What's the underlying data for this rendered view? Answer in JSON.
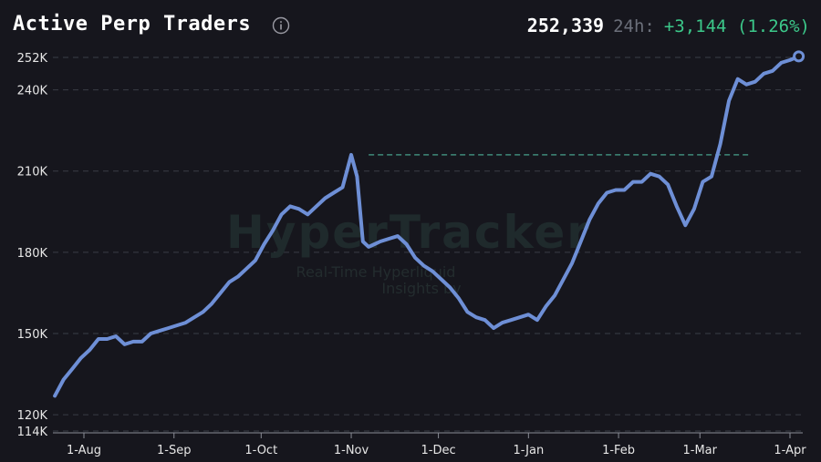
{
  "header": {
    "title": "Active Perp Traders",
    "current_value": "252,339",
    "period_label": "24h:",
    "change_text": "+3,144 (1.26%)"
  },
  "watermark": {
    "brand": "HyperTracker",
    "tagline_1": "Real-Time Hyperliquid",
    "tagline_2": "Insights by"
  },
  "colors": {
    "background": "#16161d",
    "line": "#6e8fd6",
    "positive": "#3cc88a",
    "grid": "#3a3d46",
    "reference_line": "#3f8a7a"
  },
  "chart_data": {
    "type": "line",
    "title": "Active Perp Traders",
    "xlabel": "",
    "ylabel": "",
    "ylim": [
      114000,
      254000
    ],
    "y_ticks": [
      {
        "label": "252K",
        "value": 252000
      },
      {
        "label": "240K",
        "value": 240000
      },
      {
        "label": "210K",
        "value": 210000
      },
      {
        "label": "180K",
        "value": 180000
      },
      {
        "label": "150K",
        "value": 150000
      },
      {
        "label": "120K",
        "value": 120000
      },
      {
        "label": "114K",
        "value": 114000
      }
    ],
    "x_ticks": [
      {
        "label": "1-Aug",
        "date": "2024-08-01"
      },
      {
        "label": "1-Sep",
        "date": "2024-09-01"
      },
      {
        "label": "1-Oct",
        "date": "2024-10-01"
      },
      {
        "label": "1-Nov",
        "date": "2024-11-01"
      },
      {
        "label": "1-Dec",
        "date": "2024-12-01"
      },
      {
        "label": "1-Jan",
        "date": "2025-01-01"
      },
      {
        "label": "1-Feb",
        "date": "2025-02-01"
      },
      {
        "label": "1-Mar",
        "date": "2025-03-01"
      },
      {
        "label": "1-Apr",
        "date": "2025-04-01"
      }
    ],
    "reference_line": {
      "value": 216000,
      "style": "dashed",
      "from": "2024-11-07",
      "to": "2025-03-18"
    },
    "grid": "horizontal-dashed",
    "legend": "none",
    "series": [
      {
        "x": [
          "2024-07-22",
          "2024-07-25",
          "2024-07-28",
          "2024-07-31",
          "2024-08-03",
          "2024-08-06",
          "2024-08-09",
          "2024-08-12",
          "2024-08-15",
          "2024-08-18",
          "2024-08-21",
          "2024-08-24",
          "2024-08-27",
          "2024-08-30",
          "2024-09-02",
          "2024-09-05",
          "2024-09-08",
          "2024-09-11",
          "2024-09-14",
          "2024-09-17",
          "2024-09-20",
          "2024-09-23",
          "2024-09-26",
          "2024-09-29",
          "2024-10-02",
          "2024-10-05",
          "2024-10-08",
          "2024-10-11",
          "2024-10-14",
          "2024-10-17",
          "2024-10-20",
          "2024-10-23",
          "2024-10-26",
          "2024-10-29",
          "2024-11-01",
          "2024-11-03",
          "2024-11-05",
          "2024-11-06",
          "2024-11-07",
          "2024-11-09",
          "2024-11-11",
          "2024-11-14",
          "2024-11-17",
          "2024-11-20",
          "2024-11-23",
          "2024-11-26",
          "2024-11-29",
          "2024-12-02",
          "2024-12-05",
          "2024-12-08",
          "2024-12-11",
          "2024-12-14",
          "2024-12-17",
          "2024-12-20",
          "2024-12-23",
          "2024-12-26",
          "2024-12-29",
          "2025-01-01",
          "2025-01-04",
          "2025-01-07",
          "2025-01-10",
          "2025-01-13",
          "2025-01-16",
          "2025-01-19",
          "2025-01-22",
          "2025-01-25",
          "2025-01-28",
          "2025-01-31",
          "2025-02-03",
          "2025-02-06",
          "2025-02-09",
          "2025-02-12",
          "2025-02-15",
          "2025-02-18",
          "2025-02-21",
          "2025-02-24",
          "2025-02-27",
          "2025-03-02",
          "2025-03-05",
          "2025-03-08",
          "2025-03-11",
          "2025-03-14",
          "2025-03-17",
          "2025-03-20",
          "2025-03-23",
          "2025-03-26",
          "2025-03-29",
          "2025-04-01",
          "2025-04-04"
        ],
        "values": [
          127000,
          133000,
          137000,
          141000,
          144000,
          148000,
          148000,
          149000,
          146000,
          147000,
          147000,
          150000,
          151000,
          152000,
          153000,
          154000,
          156000,
          158000,
          161000,
          165000,
          169000,
          171000,
          174000,
          177000,
          183000,
          188000,
          194000,
          197000,
          196000,
          194000,
          197000,
          200000,
          202000,
          204000,
          216000,
          208000,
          184000,
          183000,
          182000,
          183000,
          184000,
          185000,
          186000,
          183000,
          178000,
          175000,
          173000,
          170000,
          167000,
          163000,
          158000,
          156000,
          155000,
          152000,
          154000,
          155000,
          156000,
          157000,
          155000,
          160000,
          164000,
          170000,
          176000,
          184000,
          192000,
          198000,
          202000,
          203000,
          203000,
          206000,
          206000,
          209000,
          208000,
          205000,
          197000,
          190000,
          196000,
          206000,
          208000,
          220000,
          236000,
          244000,
          242000,
          243000,
          246000,
          247000,
          250000,
          251000,
          252339
        ]
      }
    ]
  }
}
